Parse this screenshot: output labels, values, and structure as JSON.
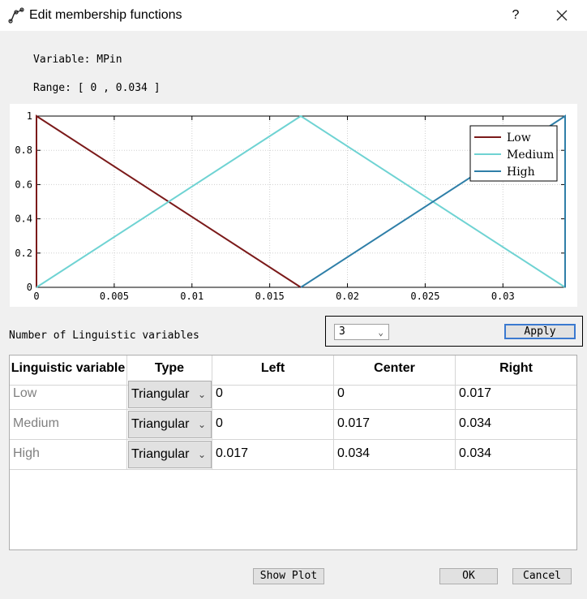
{
  "window": {
    "title": "Edit membership functions",
    "help_label": "?",
    "icons": {
      "app": "membership-curve-icon",
      "close": "close-icon"
    }
  },
  "variable_text": "Variable: MPin",
  "range_text": "Range: [ 0 , 0.034 ]",
  "chart_data": {
    "type": "line",
    "title": "",
    "xlabel": "",
    "ylabel": "",
    "xlim": [
      0,
      0.034
    ],
    "ylim": [
      0,
      1
    ],
    "x_ticks": [
      0,
      0.005,
      0.01,
      0.015,
      0.02,
      0.025,
      0.03
    ],
    "x_tick_labels": [
      "0",
      "0.005",
      "0.01",
      "0.015",
      "0.02",
      "0.025",
      "0.03"
    ],
    "y_ticks": [
      0,
      0.2,
      0.4,
      0.6,
      0.8,
      1
    ],
    "y_tick_labels": [
      "0",
      "0.2",
      "0.4",
      "0.6",
      "0.8",
      "1"
    ],
    "grid": true,
    "legend_position": "top-right",
    "series": [
      {
        "name": "Low",
        "color": "#7b1a1a",
        "x": [
          0,
          0,
          0.017
        ],
        "y": [
          0,
          1,
          0
        ]
      },
      {
        "name": "Medium",
        "color": "#6fd3d3",
        "x": [
          0,
          0.017,
          0.034
        ],
        "y": [
          0,
          1,
          0
        ]
      },
      {
        "name": "High",
        "color": "#2f7fa8",
        "x": [
          0.017,
          0.034,
          0.034
        ],
        "y": [
          0,
          1,
          0
        ]
      }
    ]
  },
  "linguistic": {
    "label": "Number of Linguistic variables",
    "count_value": "3",
    "apply_label": "Apply"
  },
  "table": {
    "headers": [
      "Linguistic variable",
      "Type",
      "Left",
      "Center",
      "Right"
    ],
    "rows": [
      {
        "name": "Low",
        "type": "Triangular",
        "left": "0",
        "center": "0",
        "right": "0.017"
      },
      {
        "name": "Medium",
        "type": "Triangular",
        "left": "0",
        "center": "0.017",
        "right": "0.034"
      },
      {
        "name": "High",
        "type": "Triangular",
        "left": "0.017",
        "center": "0.034",
        "right": "0.034"
      }
    ]
  },
  "buttons": {
    "show_plot": "Show Plot",
    "ok": "OK",
    "cancel": "Cancel"
  }
}
